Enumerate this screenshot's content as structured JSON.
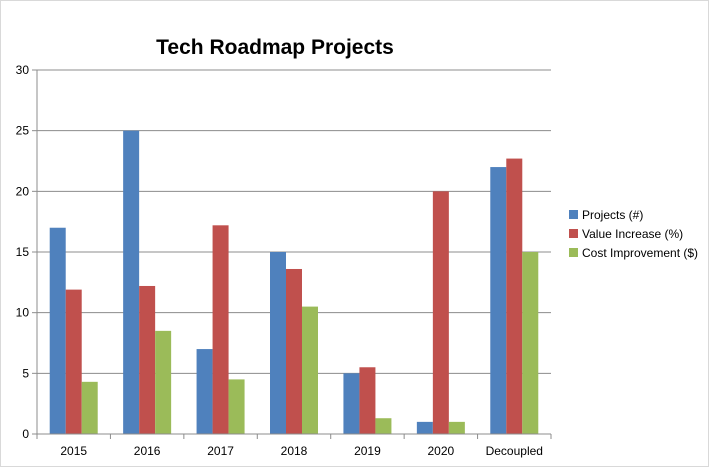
{
  "chart_data": {
    "type": "bar",
    "title": "Tech Roadmap Projects",
    "xlabel": "",
    "ylabel": "",
    "categories": [
      "2015",
      "2016",
      "2017",
      "2018",
      "2019",
      "2020",
      "Decoupled"
    ],
    "ylim": [
      0,
      30
    ],
    "yticks": [
      0,
      5,
      10,
      15,
      20,
      25,
      30
    ],
    "grid": true,
    "legend_position": "right",
    "series": [
      {
        "name": "Projects (#)",
        "color": "#4f81bd",
        "values": [
          17,
          25,
          7,
          15,
          5,
          1,
          22
        ]
      },
      {
        "name": "Value Increase (%)",
        "color": "#c0504d",
        "values": [
          11.9,
          12.2,
          17.2,
          13.6,
          5.5,
          20,
          22.7
        ]
      },
      {
        "name": "Cost Improvement ($)",
        "color": "#9bbb59",
        "values": [
          4.3,
          8.5,
          4.5,
          10.5,
          1.3,
          1,
          15
        ]
      }
    ]
  }
}
